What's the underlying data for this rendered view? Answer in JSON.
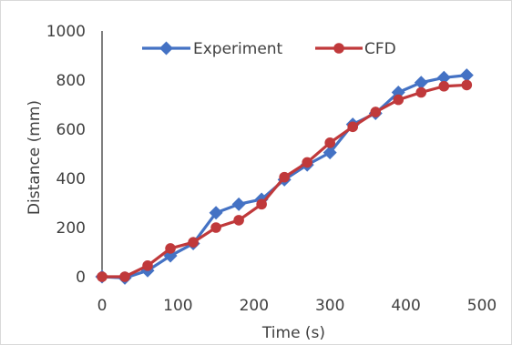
{
  "chart_data": {
    "type": "line",
    "title": "",
    "xlabel": "Time (s)",
    "ylabel": "Distance (mm)",
    "xlim": [
      0,
      500
    ],
    "ylim": [
      0,
      1000
    ],
    "x_ticks": [
      "0",
      "100",
      "200",
      "300",
      "400",
      "500"
    ],
    "y_ticks": [
      "0",
      "200",
      "400",
      "600",
      "800",
      "1000"
    ],
    "grid": false,
    "legend_position": "top",
    "series": [
      {
        "name": "Experiment",
        "color": "#4472c4",
        "marker": "diamond",
        "x": [
          0,
          30,
          60,
          90,
          120,
          150,
          180,
          210,
          240,
          270,
          300,
          330,
          360,
          390,
          420,
          450,
          480
        ],
        "y": [
          0,
          -5,
          25,
          85,
          135,
          260,
          295,
          315,
          395,
          455,
          505,
          620,
          665,
          750,
          790,
          810,
          820
        ]
      },
      {
        "name": "CFD",
        "color": "#c0393b",
        "marker": "circle",
        "x": [
          0,
          30,
          60,
          90,
          120,
          150,
          180,
          210,
          240,
          270,
          300,
          330,
          360,
          390,
          420,
          450,
          480
        ],
        "y": [
          0,
          0,
          45,
          115,
          140,
          200,
          230,
          295,
          405,
          465,
          545,
          610,
          670,
          720,
          750,
          775,
          780
        ]
      }
    ]
  }
}
